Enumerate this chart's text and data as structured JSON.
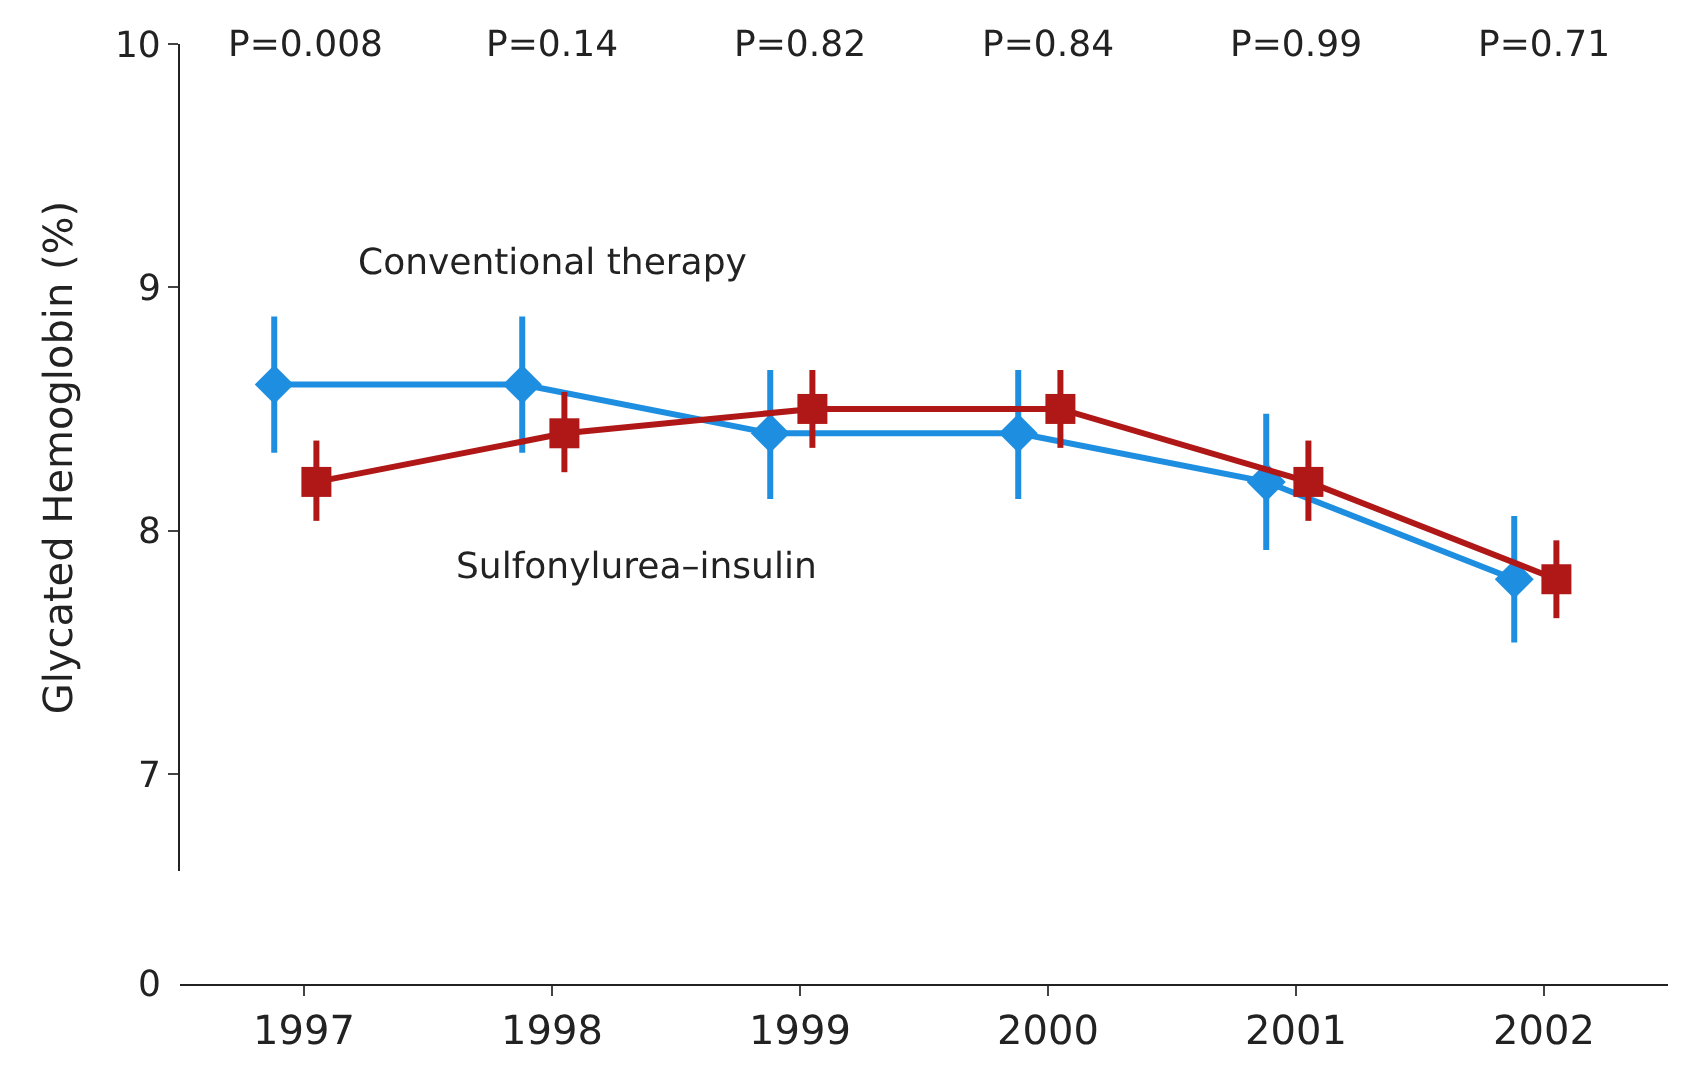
{
  "chart_data": {
    "type": "line",
    "ylabel": "Glycated Hemoglobin (%)",
    "categories": [
      "1997",
      "1998",
      "1999",
      "2000",
      "2001",
      "2002"
    ],
    "series": [
      {
        "name": "Conventional therapy",
        "color": "#1e8ee0",
        "marker": "diamond",
        "values": [
          8.6,
          8.6,
          8.4,
          8.4,
          8.2,
          7.8
        ],
        "errors": [
          [
            8.32,
            8.88
          ],
          [
            8.32,
            8.88
          ],
          [
            8.13,
            8.66
          ],
          [
            8.13,
            8.66
          ],
          [
            7.92,
            8.48
          ],
          [
            7.54,
            8.06
          ]
        ]
      },
      {
        "name": "Sulfonylurea–insulin",
        "color": "#b01818",
        "marker": "square",
        "values": [
          8.2,
          8.4,
          8.5,
          8.5,
          8.2,
          7.8
        ],
        "errors": [
          [
            8.04,
            8.37
          ],
          [
            8.24,
            8.57
          ],
          [
            8.34,
            8.66
          ],
          [
            8.34,
            8.66
          ],
          [
            8.04,
            8.37
          ],
          [
            7.64,
            7.96
          ]
        ]
      }
    ],
    "ylim": [
      6.6,
      10
    ],
    "yticks": [
      7,
      8,
      9,
      10
    ],
    "annotations": [
      "P=0.008",
      "P=0.14",
      "P=0.82",
      "P=0.84",
      "P=0.99",
      "P=0.71",
      "0"
    ],
    "legend": false,
    "line_style": "solid"
  }
}
